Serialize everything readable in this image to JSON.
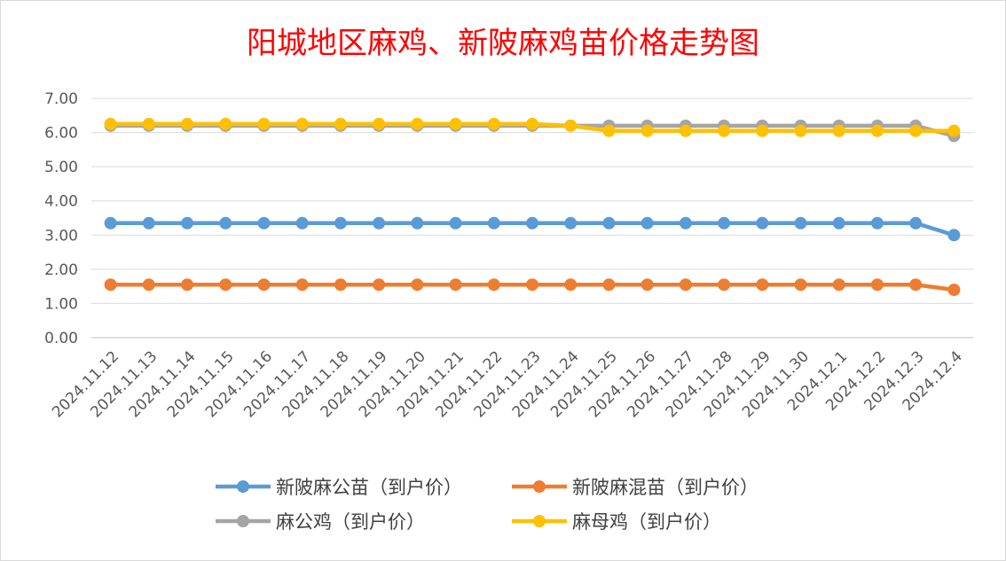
{
  "chart_data": {
    "type": "line",
    "title": "阳城地区麻鸡、新陂麻鸡苗价格走势图",
    "xlabel": "",
    "ylabel": "",
    "ylim": [
      0,
      7
    ],
    "y_ticks": [
      "0.00",
      "1.00",
      "2.00",
      "3.00",
      "4.00",
      "5.00",
      "6.00",
      "7.00"
    ],
    "grid": true,
    "legend_position": "bottom",
    "categories": [
      "2024.11.12",
      "2024.11.13",
      "2024.11.14",
      "2024.11.15",
      "2024.11.16",
      "2024.11.17",
      "2024.11.18",
      "2024.11.19",
      "2024.11.20",
      "2024.11.21",
      "2024.11.22",
      "2024.11.23",
      "2024.11.24",
      "2024.11.25",
      "2024.11.26",
      "2024.11.27",
      "2024.11.28",
      "2024.11.29",
      "2024.11.30",
      "2024.12.1",
      "2024.12.2",
      "2024.12.3",
      "2024.12.4"
    ],
    "series": [
      {
        "name": "新陂麻公苗（到户价）",
        "color": "#5b9bd5",
        "values": [
          3.35,
          3.35,
          3.35,
          3.35,
          3.35,
          3.35,
          3.35,
          3.35,
          3.35,
          3.35,
          3.35,
          3.35,
          3.35,
          3.35,
          3.35,
          3.35,
          3.35,
          3.35,
          3.35,
          3.35,
          3.35,
          3.35,
          3.0
        ]
      },
      {
        "name": "新陂麻混苗（到户价）",
        "color": "#ed7d31",
        "values": [
          1.55,
          1.55,
          1.55,
          1.55,
          1.55,
          1.55,
          1.55,
          1.55,
          1.55,
          1.55,
          1.55,
          1.55,
          1.55,
          1.55,
          1.55,
          1.55,
          1.55,
          1.55,
          1.55,
          1.55,
          1.55,
          1.55,
          1.4
        ]
      },
      {
        "name": "麻公鸡（到户价）",
        "color": "#a5a5a5",
        "values": [
          6.2,
          6.2,
          6.2,
          6.2,
          6.2,
          6.2,
          6.2,
          6.2,
          6.2,
          6.2,
          6.2,
          6.2,
          6.2,
          6.2,
          6.2,
          6.2,
          6.2,
          6.2,
          6.2,
          6.2,
          6.2,
          6.2,
          5.9
        ]
      },
      {
        "name": "麻母鸡（到户价）",
        "color": "#ffc000",
        "values": [
          6.25,
          6.25,
          6.25,
          6.25,
          6.25,
          6.25,
          6.25,
          6.25,
          6.25,
          6.25,
          6.25,
          6.25,
          6.2,
          6.05,
          6.05,
          6.05,
          6.05,
          6.05,
          6.05,
          6.05,
          6.05,
          6.05,
          6.05
        ]
      }
    ],
    "title_color": "#ff0000"
  }
}
